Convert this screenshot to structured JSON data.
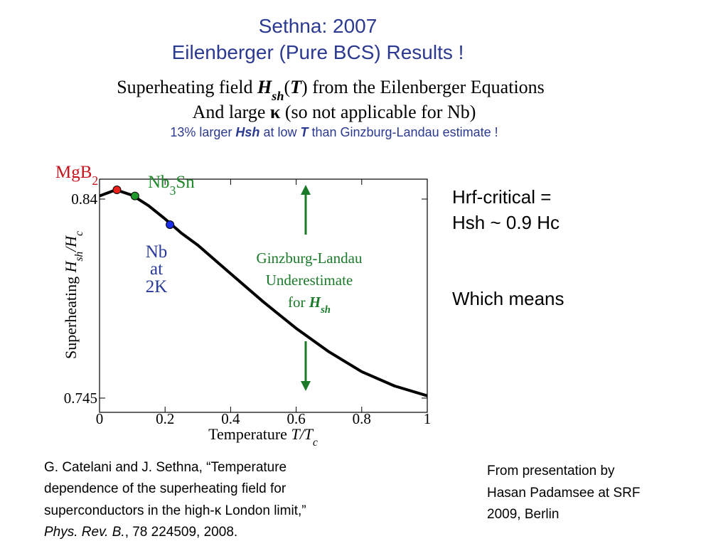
{
  "slide": {
    "title": [
      "Sethna: 2007",
      "Eilenberger (Pure BCS) Results !"
    ],
    "subtitle": [
      [
        {
          "t": "Superheating field "
        },
        {
          "t": "H",
          "b": true,
          "i": true
        },
        {
          "t": "sh",
          "b": true,
          "i": true,
          "sub": true
        },
        {
          "t": "("
        },
        {
          "t": "T",
          "b": true,
          "i": true
        },
        {
          "t": ") from the Eilenberger Equations"
        }
      ],
      [
        {
          "t": "And large "
        },
        {
          "t": "κ",
          "b": true
        },
        {
          "t": "  (so not applicable for Nb)"
        }
      ],
      [
        {
          "t": "13% larger "
        },
        {
          "t": "Hsh",
          "b": true,
          "i": true
        },
        {
          "t": " at low "
        },
        {
          "t": "T",
          "b": true,
          "i": true
        },
        {
          "t": " than Ginzburg-Landau estimate !"
        }
      ]
    ],
    "right_text": [
      "Hrf-critical =",
      "Hsh ~ 0.9 Hc",
      "Which means"
    ],
    "citation": [
      [
        {
          "t": "G. Catelani and J. Sethna, “Temperature"
        }
      ],
      [
        {
          "t": "dependence of the superheating field for"
        }
      ],
      [
        {
          "t": "superconductors in the high-κ London limit,”"
        }
      ],
      [
        {
          "t": "Phys. Rev. B.",
          "i": true
        },
        {
          "t": ", 78 224509, 2008."
        }
      ]
    ],
    "source": [
      "From presentation by",
      "Hasan Padamsee at SRF",
      "2009, Berlin"
    ]
  },
  "chart_data": {
    "type": "line",
    "x": [
      0,
      0.05,
      0.1,
      0.15,
      0.2,
      0.25,
      0.3,
      0.4,
      0.5,
      0.6,
      0.7,
      0.8,
      0.9,
      1
    ],
    "series": [
      {
        "color": "#000000",
        "values": [
          0.8415,
          0.8444,
          0.8418,
          0.8368,
          0.8305,
          0.8237,
          0.818,
          0.8044,
          0.7909,
          0.7783,
          0.7671,
          0.7576,
          0.7508,
          0.7461
        ]
      }
    ],
    "points": [
      {
        "label": [
          [
            {
              "t": "MgB"
            },
            {
              "t": "2",
              "sub": true
            }
          ]
        ],
        "x": 0.053,
        "y": 0.8444,
        "color": "#e8201c",
        "label_color": "#c8141c"
      },
      {
        "label": [
          [
            {
              "t": "Nb"
            },
            {
              "t": "3",
              "sub": true
            },
            {
              "t": "Sn"
            }
          ]
        ],
        "x": 0.108,
        "y": 0.8415,
        "color": "#1f9a2a",
        "label_color": "#1f8a2a"
      },
      {
        "label": [
          [
            {
              "t": "Nb"
            }
          ],
          [
            {
              "t": "at"
            }
          ],
          [
            {
              "t": "2K"
            }
          ]
        ],
        "x": 0.215,
        "y": 0.8278,
        "color": "#1a2ee8",
        "label_color": "#2a3a9a"
      }
    ],
    "annotation": [
      [
        {
          "t": "Ginzburg-Landau"
        }
      ],
      [
        {
          "t": "Underestimate"
        }
      ],
      [
        {
          "t": "for "
        },
        {
          "t": "H",
          "b": true,
          "i": true
        },
        {
          "t": "sh",
          "b": true,
          "i": true,
          "sub": true
        }
      ]
    ],
    "annotation_color": "#1a7a2a",
    "xlabel": [
      {
        "t": "Temperature "
      },
      {
        "t": "T/T",
        "i": true
      },
      {
        "t": "c",
        "i": true,
        "sub": true
      }
    ],
    "ylabel": [
      {
        "t": "Superheating "
      },
      {
        "t": "H",
        "i": true
      },
      {
        "t": "sh",
        "i": true,
        "sub": true
      },
      {
        "t": "/H",
        "i": true
      },
      {
        "t": "c",
        "i": true,
        "sub": true
      }
    ],
    "xlim": [
      0,
      1
    ],
    "xticks": [
      0,
      0.2,
      0.4,
      0.6,
      0.8,
      1
    ],
    "ylim": [
      0.7382,
      0.8495
    ],
    "yticks": [
      0.745,
      0.84
    ]
  }
}
